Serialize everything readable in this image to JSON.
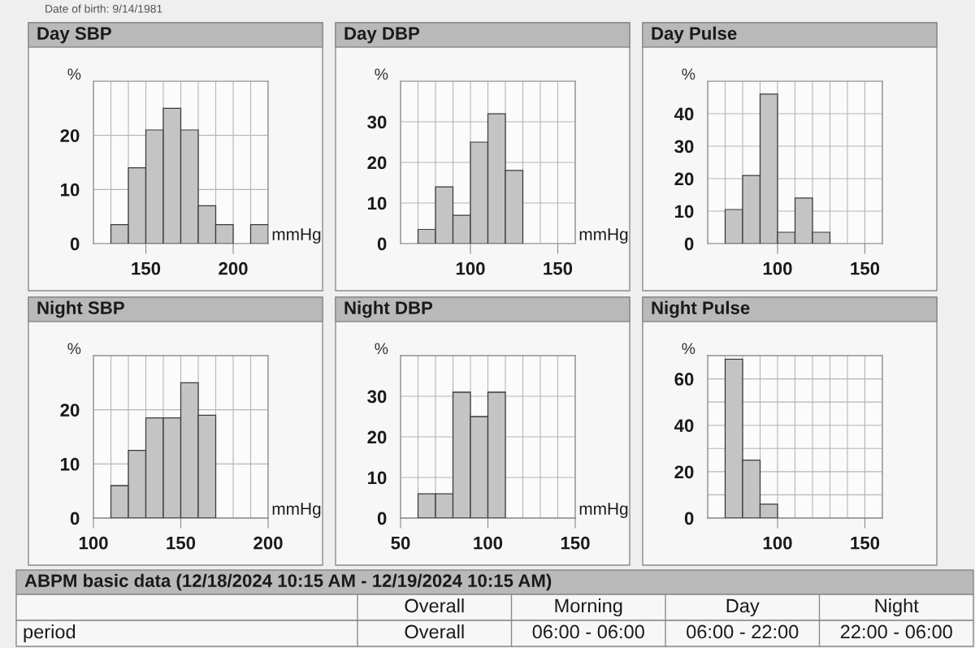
{
  "chart_data": [
    {
      "type": "other",
      "annotations": [
        "Date of birth: 9/14/1981"
      ]
    },
    {
      "type": "histogram",
      "title": "Day SBP",
      "xlabel": "mmHg",
      "ylabel": "%",
      "bins": [
        130,
        140,
        150,
        160,
        170,
        180,
        190,
        200,
        210,
        220
      ],
      "values": [
        3.5,
        14,
        21,
        25,
        21,
        7,
        3.5,
        null,
        3.5
      ],
      "color": "#c4c4c4",
      "xlim": [
        120,
        220
      ],
      "ylim": [
        0,
        30
      ],
      "xticks": [
        {
          "value": 120,
          "label": null
        },
        {
          "value": 130,
          "label": null
        },
        {
          "value": 140,
          "label": null
        },
        150,
        {
          "value": 160,
          "label": null
        },
        {
          "value": 170,
          "label": null
        },
        {
          "value": 180,
          "label": null
        },
        {
          "value": 190,
          "label": null
        },
        200,
        {
          "value": 210,
          "label": null
        },
        {
          "value": 220,
          "label": null
        }
      ],
      "yticks": [
        0,
        10,
        20,
        {
          "value": 30,
          "label": null
        }
      ],
      "grid": true
    },
    {
      "type": "histogram",
      "title": "Day DBP",
      "xlabel": "mmHg",
      "ylabel": "%",
      "bins": [
        70,
        80,
        90,
        100,
        110,
        120,
        130
      ],
      "values": [
        3.5,
        14,
        7,
        25,
        32,
        18
      ],
      "color": "#c4c4c4",
      "xlim": [
        60,
        160
      ],
      "ylim": [
        0,
        40
      ],
      "xticks": [
        {
          "value": 60,
          "label": null
        },
        {
          "value": 70,
          "label": null
        },
        {
          "value": 80,
          "label": null
        },
        {
          "value": 90,
          "label": null
        },
        100,
        {
          "value": 110,
          "label": null
        },
        {
          "value": 120,
          "label": null
        },
        {
          "value": 130,
          "label": null
        },
        {
          "value": 140,
          "label": null
        },
        150,
        {
          "value": 160,
          "label": null
        }
      ],
      "yticks": [
        0,
        10,
        20,
        30,
        {
          "value": 40,
          "label": null
        }
      ],
      "grid": true
    },
    {
      "type": "histogram",
      "title": "Day Pulse",
      "ylabel": "%",
      "bins": [
        70,
        80,
        90,
        100,
        110,
        120,
        130
      ],
      "values": [
        10.5,
        21,
        46,
        3.5,
        14,
        3.5
      ],
      "color": "#c4c4c4",
      "xlim": [
        60,
        160
      ],
      "ylim": [
        0,
        50
      ],
      "xticks": [
        {
          "value": 60,
          "label": null
        },
        {
          "value": 70,
          "label": null
        },
        {
          "value": 80,
          "label": null
        },
        {
          "value": 90,
          "label": null
        },
        100,
        {
          "value": 110,
          "label": null
        },
        {
          "value": 120,
          "label": null
        },
        {
          "value": 130,
          "label": null
        },
        {
          "value": 140,
          "label": null
        },
        150,
        {
          "value": 160,
          "label": null
        }
      ],
      "yticks": [
        0,
        10,
        20,
        30,
        40,
        {
          "value": 50,
          "label": null
        }
      ],
      "grid": true
    },
    {
      "type": "histogram",
      "title": "Night SBP",
      "xlabel": "mmHg",
      "ylabel": "%",
      "bins": [
        110,
        120,
        130,
        140,
        150,
        160,
        170
      ],
      "values": [
        6,
        12.5,
        18.5,
        18.5,
        25,
        19
      ],
      "color": "#c4c4c4",
      "xlim": [
        100,
        200
      ],
      "ylim": [
        0,
        30
      ],
      "xticks": [
        100,
        {
          "value": 110,
          "label": null
        },
        {
          "value": 120,
          "label": null
        },
        {
          "value": 130,
          "label": null
        },
        {
          "value": 140,
          "label": null
        },
        150,
        {
          "value": 160,
          "label": null
        },
        {
          "value": 170,
          "label": null
        },
        {
          "value": 180,
          "label": null
        },
        {
          "value": 190,
          "label": null
        },
        200
      ],
      "yticks": [
        0,
        10,
        20,
        {
          "value": 30,
          "label": null
        }
      ],
      "grid": true
    },
    {
      "type": "histogram",
      "title": "Night DBP",
      "xlabel": "mmHg",
      "ylabel": "%",
      "bins": [
        60,
        70,
        80,
        90,
        100,
        110
      ],
      "values": [
        6,
        6,
        31,
        25,
        31
      ],
      "color": "#c4c4c4",
      "xlim": [
        50,
        150
      ],
      "ylim": [
        0,
        40
      ],
      "xticks": [
        50,
        {
          "value": 60,
          "label": null
        },
        {
          "value": 70,
          "label": null
        },
        {
          "value": 80,
          "label": null
        },
        {
          "value": 90,
          "label": null
        },
        100,
        {
          "value": 110,
          "label": null
        },
        {
          "value": 120,
          "label": null
        },
        {
          "value": 130,
          "label": null
        },
        {
          "value": 140,
          "label": null
        },
        150
      ],
      "yticks": [
        0,
        10,
        20,
        30,
        {
          "value": 40,
          "label": null
        }
      ],
      "grid": true
    },
    {
      "type": "histogram",
      "title": "Night Pulse",
      "ylabel": "%",
      "bins": [
        70,
        80,
        90,
        100
      ],
      "values": [
        68.5,
        25,
        6
      ],
      "color": "#c4c4c4",
      "xlim": [
        60,
        160
      ],
      "ylim": [
        0,
        70
      ],
      "xticks": [
        {
          "value": 60,
          "label": null
        },
        {
          "value": 70,
          "label": null
        },
        {
          "value": 80,
          "label": null
        },
        {
          "value": 90,
          "label": null
        },
        100,
        {
          "value": 110,
          "label": null
        },
        {
          "value": 120,
          "label": null
        },
        {
          "value": 130,
          "label": null
        },
        {
          "value": 140,
          "label": null
        },
        150,
        {
          "value": 160,
          "label": null
        }
      ],
      "yticks": [
        0,
        {
          "value": 10,
          "label": null
        },
        20,
        {
          "value": 30,
          "label": null
        },
        40,
        {
          "value": 50,
          "label": null
        },
        60,
        {
          "value": 70,
          "label": null
        }
      ],
      "grid": true
    },
    {
      "type": "other",
      "title": "ABPM basic data (12/18/2024 10:15 AM - 12/19/2024 10:15 AM)",
      "categories": [
        "Overall",
        "Morning",
        "Day",
        "Night"
      ],
      "annotations": [
        "period",
        "Overall",
        "06:00 - 06:00",
        "06:00 - 22:00",
        "22:00 - 06:00"
      ]
    }
  ]
}
